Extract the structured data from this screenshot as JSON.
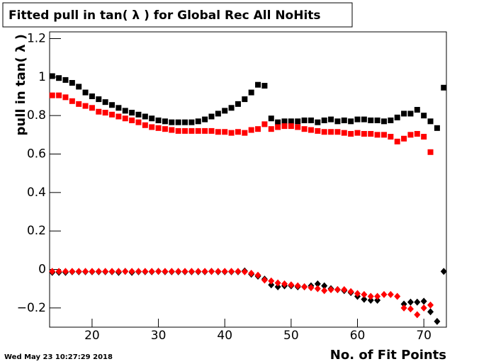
{
  "chart_data": {
    "type": "scatter",
    "title": "Fitted pull in tan( λ ) for Global Rec All NoHits",
    "x_label": "No. of Fit Points",
    "y_label": "pull in tan( λ )",
    "timestamp": "Wed May 23 10:27:29 2018",
    "xlim": [
      13.6,
      73.4
    ],
    "ylim": [
      -0.3,
      1.235
    ],
    "xticks": [
      20,
      30,
      40,
      50,
      60,
      70
    ],
    "yticks": [
      {
        "value": -0.2,
        "label": "−0.2"
      },
      0,
      0.2,
      0.4,
      0.6,
      0.8,
      1,
      1.2
    ],
    "series": [
      {
        "color": "#000000",
        "marker": "square",
        "x": [
          14,
          15,
          16,
          17,
          18,
          19,
          20,
          21,
          22,
          23,
          24,
          25,
          26,
          27,
          28,
          29,
          30,
          31,
          32,
          33,
          34,
          35,
          36,
          37,
          38,
          39,
          40,
          41,
          42,
          43,
          44,
          45,
          46,
          47,
          48,
          49,
          50,
          51,
          52,
          53,
          54,
          55,
          56,
          57,
          58,
          59,
          60,
          61,
          62,
          63,
          64,
          65,
          66,
          67,
          68,
          69,
          70,
          71,
          72,
          73
        ],
        "values": [
          1.005,
          0.995,
          0.985,
          0.97,
          0.95,
          0.92,
          0.9,
          0.885,
          0.87,
          0.855,
          0.84,
          0.825,
          0.815,
          0.805,
          0.795,
          0.785,
          0.775,
          0.77,
          0.765,
          0.765,
          0.765,
          0.765,
          0.77,
          0.78,
          0.795,
          0.81,
          0.825,
          0.84,
          0.86,
          0.885,
          0.92,
          0.96,
          0.955,
          0.785,
          0.765,
          0.77,
          0.77,
          0.77,
          0.775,
          0.775,
          0.765,
          0.775,
          0.78,
          0.77,
          0.775,
          0.77,
          0.78,
          0.78,
          0.775,
          0.775,
          0.77,
          0.775,
          0.79,
          0.81,
          0.81,
          0.83,
          0.8,
          0.77,
          0.735,
          0.945
        ]
      },
      {
        "color": "#ff0000",
        "marker": "square",
        "x": [
          14,
          15,
          16,
          17,
          18,
          19,
          20,
          21,
          22,
          23,
          24,
          25,
          26,
          27,
          28,
          29,
          30,
          31,
          32,
          33,
          34,
          35,
          36,
          37,
          38,
          39,
          40,
          41,
          42,
          43,
          44,
          45,
          46,
          47,
          48,
          49,
          50,
          51,
          52,
          53,
          54,
          55,
          56,
          57,
          58,
          59,
          60,
          61,
          62,
          63,
          64,
          65,
          66,
          67,
          68,
          69,
          70,
          71
        ],
        "values": [
          0.905,
          0.905,
          0.895,
          0.875,
          0.86,
          0.85,
          0.84,
          0.82,
          0.815,
          0.805,
          0.795,
          0.785,
          0.775,
          0.765,
          0.75,
          0.74,
          0.735,
          0.73,
          0.725,
          0.72,
          0.72,
          0.72,
          0.72,
          0.72,
          0.72,
          0.715,
          0.715,
          0.71,
          0.715,
          0.71,
          0.725,
          0.73,
          0.755,
          0.73,
          0.74,
          0.745,
          0.745,
          0.74,
          0.73,
          0.725,
          0.72,
          0.715,
          0.715,
          0.715,
          0.71,
          0.705,
          0.71,
          0.705,
          0.705,
          0.7,
          0.7,
          0.69,
          0.665,
          0.68,
          0.7,
          0.705,
          0.69,
          0.61
        ]
      },
      {
        "color": "#000000",
        "marker": "diamond",
        "x": [
          14,
          15,
          16,
          17,
          18,
          19,
          20,
          21,
          22,
          23,
          24,
          25,
          26,
          27,
          28,
          29,
          30,
          31,
          32,
          33,
          34,
          35,
          36,
          37,
          38,
          39,
          40,
          41,
          42,
          43,
          44,
          45,
          46,
          47,
          48,
          49,
          50,
          51,
          52,
          53,
          54,
          55,
          56,
          57,
          58,
          59,
          60,
          61,
          62,
          63,
          67,
          68,
          69,
          70,
          71,
          72,
          73
        ],
        "values": [
          -0.015,
          -0.015,
          -0.015,
          -0.012,
          -0.012,
          -0.012,
          -0.012,
          -0.012,
          -0.012,
          -0.012,
          -0.015,
          -0.01,
          -0.015,
          -0.012,
          -0.012,
          -0.012,
          -0.01,
          -0.012,
          -0.012,
          -0.012,
          -0.012,
          -0.012,
          -0.012,
          -0.012,
          -0.01,
          -0.012,
          -0.012,
          -0.012,
          -0.012,
          -0.008,
          -0.025,
          -0.035,
          -0.05,
          -0.08,
          -0.09,
          -0.085,
          -0.085,
          -0.09,
          -0.09,
          -0.085,
          -0.075,
          -0.085,
          -0.1,
          -0.105,
          -0.11,
          -0.12,
          -0.14,
          -0.155,
          -0.16,
          -0.16,
          -0.18,
          -0.17,
          -0.17,
          -0.165,
          -0.22,
          -0.27,
          -0.01
        ]
      },
      {
        "color": "#ff0000",
        "marker": "diamond",
        "x": [
          14,
          15,
          16,
          17,
          18,
          19,
          20,
          21,
          22,
          23,
          24,
          25,
          26,
          27,
          28,
          29,
          30,
          31,
          32,
          33,
          34,
          35,
          36,
          37,
          38,
          39,
          40,
          41,
          42,
          43,
          44,
          45,
          46,
          47,
          48,
          49,
          50,
          51,
          52,
          53,
          54,
          55,
          56,
          57,
          58,
          59,
          60,
          61,
          62,
          63,
          64,
          65,
          66,
          67,
          68,
          69,
          70,
          71
        ],
        "values": [
          -0.01,
          -0.01,
          -0.01,
          -0.01,
          -0.01,
          -0.01,
          -0.01,
          -0.01,
          -0.01,
          -0.01,
          -0.01,
          -0.01,
          -0.01,
          -0.01,
          -0.01,
          -0.01,
          -0.01,
          -0.01,
          -0.01,
          -0.01,
          -0.01,
          -0.01,
          -0.01,
          -0.01,
          -0.01,
          -0.01,
          -0.01,
          -0.01,
          -0.01,
          -0.012,
          -0.02,
          -0.03,
          -0.055,
          -0.06,
          -0.07,
          -0.075,
          -0.08,
          -0.085,
          -0.09,
          -0.095,
          -0.1,
          -0.11,
          -0.105,
          -0.105,
          -0.105,
          -0.115,
          -0.125,
          -0.13,
          -0.14,
          -0.14,
          -0.13,
          -0.13,
          -0.14,
          -0.2,
          -0.205,
          -0.235,
          -0.2,
          -0.185
        ]
      }
    ]
  }
}
